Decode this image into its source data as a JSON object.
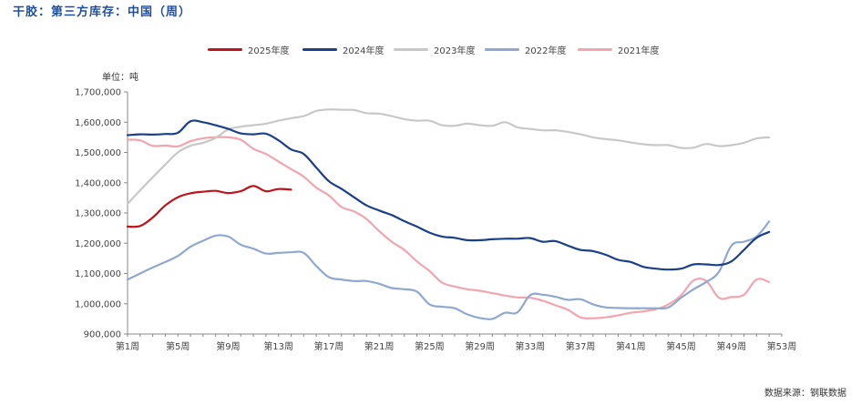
{
  "title": "干胶：第三方库存：中国（周）",
  "unit_label": "单位：吨",
  "source_label": "数据来源：钢联数据",
  "chart_data": {
    "type": "line",
    "title": "干胶：第三方库存：中国（周）",
    "ylabel": "单位：吨",
    "xlabel": "",
    "ylim": [
      900000,
      1700000
    ],
    "yticks": [
      900000,
      1000000,
      1100000,
      1200000,
      1300000,
      1400000,
      1500000,
      1600000,
      1700000
    ],
    "ytick_labels": [
      "900,000",
      "1,000,000",
      "1,100,000",
      "1,200,000",
      "1,300,000",
      "1,400,000",
      "1,500,000",
      "1,600,000",
      "1,700,000"
    ],
    "xlim": [
      1,
      53
    ],
    "xticks": [
      1,
      5,
      9,
      13,
      17,
      21,
      25,
      29,
      33,
      37,
      41,
      45,
      49,
      53
    ],
    "xtick_labels": [
      "第1周",
      "第5周",
      "第9周",
      "第13周",
      "第17周",
      "第21周",
      "第25周",
      "第29周",
      "第33周",
      "第37周",
      "第41周",
      "第45周",
      "第49周",
      "第53周"
    ],
    "grid": false,
    "legend_position": "top",
    "series": [
      {
        "name": "2025年度",
        "color": "#c0141c",
        "x": [
          1,
          2,
          3,
          4,
          5,
          6,
          7,
          8,
          9,
          10,
          11,
          12,
          13,
          14
        ],
        "values": [
          1255000,
          1257000,
          1285000,
          1325000,
          1352000,
          1365000,
          1370000,
          1373000,
          1366000,
          1372000,
          1389000,
          1372000,
          1379000,
          1377000
        ]
      },
      {
        "name": "2024年度",
        "color": "#1b3f88",
        "x": [
          1,
          2,
          3,
          4,
          5,
          6,
          7,
          8,
          9,
          10,
          11,
          12,
          13,
          14,
          15,
          16,
          17,
          18,
          19,
          20,
          21,
          22,
          23,
          24,
          25,
          26,
          27,
          28,
          29,
          30,
          31,
          32,
          33,
          34,
          35,
          36,
          37,
          38,
          39,
          40,
          41,
          42,
          43,
          44,
          45,
          46,
          47,
          48,
          49,
          50,
          51,
          52
        ],
        "values": [
          1557000,
          1560000,
          1559000,
          1561000,
          1565000,
          1603000,
          1600000,
          1590000,
          1578000,
          1563000,
          1560000,
          1562000,
          1540000,
          1510000,
          1495000,
          1450000,
          1405000,
          1380000,
          1352000,
          1325000,
          1308000,
          1293000,
          1273000,
          1255000,
          1235000,
          1222000,
          1218000,
          1210000,
          1210000,
          1213000,
          1215000,
          1215000,
          1217000,
          1205000,
          1207000,
          1192000,
          1178000,
          1174000,
          1162000,
          1145000,
          1138000,
          1122000,
          1116000,
          1113000,
          1116000,
          1130000,
          1130000,
          1128000,
          1140000,
          1178000,
          1218000,
          1237000
        ]
      },
      {
        "name": "2023年度",
        "color": "#c8c8c8",
        "x": [
          1,
          2,
          3,
          4,
          5,
          6,
          7,
          8,
          9,
          10,
          11,
          12,
          13,
          14,
          15,
          16,
          17,
          18,
          19,
          20,
          21,
          22,
          23,
          24,
          25,
          26,
          27,
          28,
          29,
          30,
          31,
          32,
          33,
          34,
          35,
          36,
          37,
          38,
          39,
          40,
          41,
          42,
          43,
          44,
          45,
          46,
          47,
          48,
          49,
          50,
          51,
          52
        ],
        "values": [
          1330000,
          1375000,
          1418000,
          1460000,
          1500000,
          1522000,
          1532000,
          1548000,
          1576000,
          1585000,
          1590000,
          1595000,
          1605000,
          1613000,
          1620000,
          1637000,
          1642000,
          1641000,
          1640000,
          1630000,
          1628000,
          1620000,
          1610000,
          1605000,
          1605000,
          1590000,
          1588000,
          1595000,
          1590000,
          1588000,
          1600000,
          1583000,
          1578000,
          1573000,
          1573000,
          1568000,
          1560000,
          1550000,
          1544000,
          1540000,
          1533000,
          1527000,
          1524000,
          1524000,
          1515000,
          1516000,
          1528000,
          1521000,
          1524000,
          1532000,
          1546000,
          1550000
        ]
      },
      {
        "name": "2022年度",
        "color": "#8fa8cf",
        "x": [
          1,
          2,
          3,
          4,
          5,
          6,
          7,
          8,
          9,
          10,
          11,
          12,
          13,
          14,
          15,
          16,
          17,
          18,
          19,
          20,
          21,
          22,
          23,
          24,
          25,
          26,
          27,
          28,
          29,
          30,
          31,
          32,
          33,
          34,
          35,
          36,
          37,
          38,
          39,
          40,
          41,
          42,
          43,
          44,
          45,
          46,
          47,
          48,
          49,
          50,
          51,
          52
        ],
        "values": [
          1080000,
          1100000,
          1120000,
          1138000,
          1158000,
          1188000,
          1208000,
          1225000,
          1222000,
          1195000,
          1182000,
          1166000,
          1168000,
          1170000,
          1168000,
          1125000,
          1088000,
          1080000,
          1075000,
          1075000,
          1066000,
          1052000,
          1048000,
          1040000,
          998000,
          990000,
          985000,
          965000,
          953000,
          950000,
          970000,
          972000,
          1028000,
          1030000,
          1023000,
          1013000,
          1015000,
          998000,
          988000,
          986000,
          985000,
          985000,
          985000,
          988000,
          1020000,
          1048000,
          1072000,
          1105000,
          1192000,
          1205000,
          1222000,
          1272000
        ]
      },
      {
        "name": "2021年度",
        "color": "#f2a5b0",
        "x": [
          1,
          2,
          3,
          4,
          5,
          6,
          7,
          8,
          9,
          10,
          11,
          12,
          13,
          14,
          15,
          16,
          17,
          18,
          19,
          20,
          21,
          22,
          23,
          24,
          25,
          26,
          27,
          28,
          29,
          30,
          31,
          32,
          33,
          34,
          35,
          36,
          37,
          38,
          39,
          40,
          41,
          42,
          43,
          44,
          45,
          46,
          47,
          48,
          49,
          50,
          51,
          52
        ],
        "values": [
          1542000,
          1540000,
          1522000,
          1523000,
          1520000,
          1537000,
          1547000,
          1550000,
          1550000,
          1542000,
          1512000,
          1495000,
          1470000,
          1445000,
          1420000,
          1384000,
          1358000,
          1320000,
          1305000,
          1280000,
          1240000,
          1205000,
          1178000,
          1140000,
          1108000,
          1070000,
          1057000,
          1048000,
          1043000,
          1035000,
          1027000,
          1021000,
          1020000,
          1010000,
          995000,
          980000,
          955000,
          952000,
          955000,
          962000,
          970000,
          975000,
          982000,
          998000,
          1028000,
          1077000,
          1075000,
          1020000,
          1022000,
          1030000,
          1080000,
          1072000
        ]
      }
    ]
  }
}
